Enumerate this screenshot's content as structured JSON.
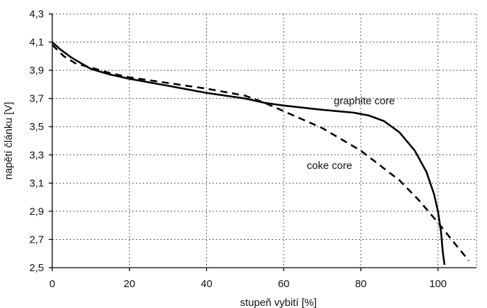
{
  "chart_data": {
    "type": "line",
    "title": "",
    "xlabel": "stupeň vybití [%]",
    "ylabel": "napětí článku [V]",
    "xlim": [
      0,
      110
    ],
    "ylim": [
      2.5,
      4.3
    ],
    "x_ticks": [
      0,
      20,
      40,
      60,
      80,
      100
    ],
    "x_tick_labels": [
      "0",
      "20",
      "40",
      "60",
      "80",
      "100"
    ],
    "y_ticks": [
      2.5,
      2.7,
      2.9,
      3.1,
      3.3,
      3.5,
      3.7,
      3.9,
      4.1,
      4.3
    ],
    "y_tick_labels": [
      "2,5",
      "2,7",
      "2,9",
      "3,1",
      "3,3",
      "3,5",
      "3,7",
      "3,9",
      "4,1",
      "4,3"
    ],
    "grid": true,
    "series": [
      {
        "name": "graphite core",
        "style": "solid",
        "x": [
          0,
          2,
          5,
          10,
          15,
          20,
          30,
          40,
          50,
          55,
          60,
          70,
          78,
          82,
          86,
          90,
          94,
          97,
          99,
          100,
          100.8,
          101.3,
          101.7
        ],
        "y": [
          4.1,
          4.05,
          3.99,
          3.91,
          3.87,
          3.84,
          3.79,
          3.74,
          3.7,
          3.67,
          3.65,
          3.62,
          3.6,
          3.58,
          3.54,
          3.46,
          3.33,
          3.18,
          3.02,
          2.9,
          2.75,
          2.6,
          2.52
        ]
      },
      {
        "name": "coke core",
        "style": "dashed",
        "x": [
          0,
          3,
          6,
          10,
          15,
          20,
          30,
          40,
          50,
          55,
          60,
          65,
          70,
          80,
          90,
          95,
          100,
          105,
          108
        ],
        "y": [
          4.08,
          4.0,
          3.95,
          3.92,
          3.88,
          3.85,
          3.81,
          3.77,
          3.72,
          3.67,
          3.61,
          3.55,
          3.49,
          3.33,
          3.12,
          2.98,
          2.82,
          2.65,
          2.55
        ]
      }
    ],
    "annotations": [
      {
        "text": "graphite core",
        "x": 73,
        "y": 3.66
      },
      {
        "text": "coke core",
        "x": 66,
        "y": 3.2
      }
    ]
  }
}
